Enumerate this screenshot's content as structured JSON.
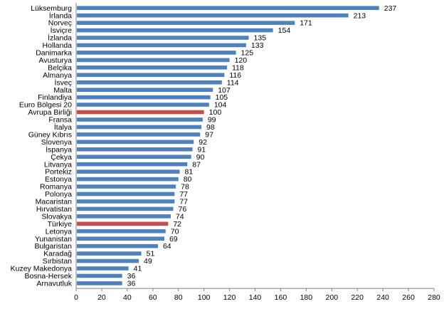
{
  "chart_data": {
    "type": "bar",
    "orientation": "horizontal",
    "categories": [
      "Lüksemburg",
      "İrlanda",
      "Norveç",
      "İsviçre",
      "İzlanda",
      "Hollanda",
      "Danimarka",
      "Avusturya",
      "Belçika",
      "Almanya",
      "İsveç",
      "Malta",
      "Finlandiya",
      "Euro Bölgesi 20",
      "Avrupa Birliği",
      "Fransa",
      "İtalya",
      "Güney Kıbrıs",
      "Slovenya",
      "İspanya",
      "Çekya",
      "Litvanya",
      "Portekiz",
      "Estonya",
      "Romanya",
      "Polonya",
      "Macaristan",
      "Hırvatistan",
      "Slovakya",
      "Türkiye",
      "Letonya",
      "Yunanistan",
      "Bulgaristan",
      "Karadağ",
      "Sırbistan",
      "Kuzey Makedonya",
      "Bosna-Hersek",
      "Arnavutluk"
    ],
    "values": [
      237,
      213,
      171,
      154,
      135,
      133,
      125,
      120,
      118,
      116,
      114,
      107,
      105,
      104,
      100,
      99,
      98,
      97,
      92,
      91,
      90,
      87,
      81,
      80,
      78,
      77,
      77,
      76,
      74,
      72,
      70,
      69,
      64,
      51,
      49,
      41,
      36,
      36
    ],
    "highlighted": [
      "Avrupa Birliği",
      "Türkiye"
    ],
    "xlim": [
      0,
      280
    ],
    "xticks": [
      0,
      20,
      40,
      60,
      80,
      100,
      120,
      140,
      160,
      180,
      200,
      220,
      240,
      260,
      280
    ],
    "grid": false,
    "colors": {
      "bar": "#4f81bd",
      "highlight": "#c0504d",
      "axis": "#808080"
    }
  }
}
